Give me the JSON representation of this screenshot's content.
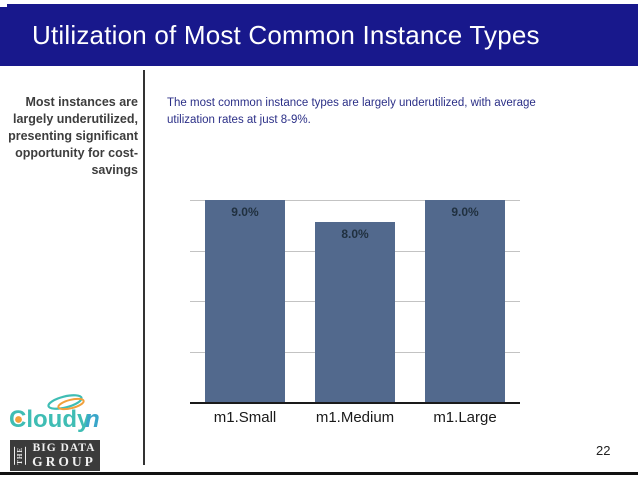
{
  "slide": {
    "title": "Utilization of Most Common Instance Types",
    "page_number": "22"
  },
  "sidebar": {
    "callout": "Most instances are\nlargely underutilized,\npresenting significant\nopportunity for cost-\nsavings"
  },
  "content": {
    "summary": "The most common instance types are largely underutilized, with average\nutilization rates at just 8-9%."
  },
  "chart_data": {
    "type": "bar",
    "categories": [
      "m1.Small",
      "m1.Medium",
      "m1.Large"
    ],
    "values": [
      9.0,
      8.0,
      9.0
    ],
    "data_labels": [
      "9.0%",
      "8.0%",
      "9.0%"
    ],
    "title": "",
    "xlabel": "",
    "ylabel": "",
    "ylim": [
      0,
      9
    ],
    "grid": true,
    "gridline_values": [
      2.25,
      4.5,
      6.75,
      9
    ],
    "legend_position": "none",
    "bar_color": "#52698d",
    "data_label_color": "#20303f",
    "gridline_color": "#c3c3c3",
    "axis_color": "#1a1a1a"
  },
  "footer": {
    "cloudyn_logo": {
      "word_teal": "Cloudy",
      "word_blue": "n"
    },
    "big_data_group_logo": {
      "the": "THE",
      "line1": "BIG DATA",
      "line2": "GROUP"
    }
  },
  "colors": {
    "header_bg": "#18188c",
    "header_text": "#ffffff",
    "summary_text": "#2b2f87",
    "sidebar_text": "#3d3d3d",
    "cloudyn_teal": "#3fbdb4",
    "cloudyn_blue": "#3aa6c9",
    "cloudyn_orange": "#f0a03c",
    "bdg_bg": "#3b3b3b",
    "bdg_text": "#f0f0f0"
  }
}
